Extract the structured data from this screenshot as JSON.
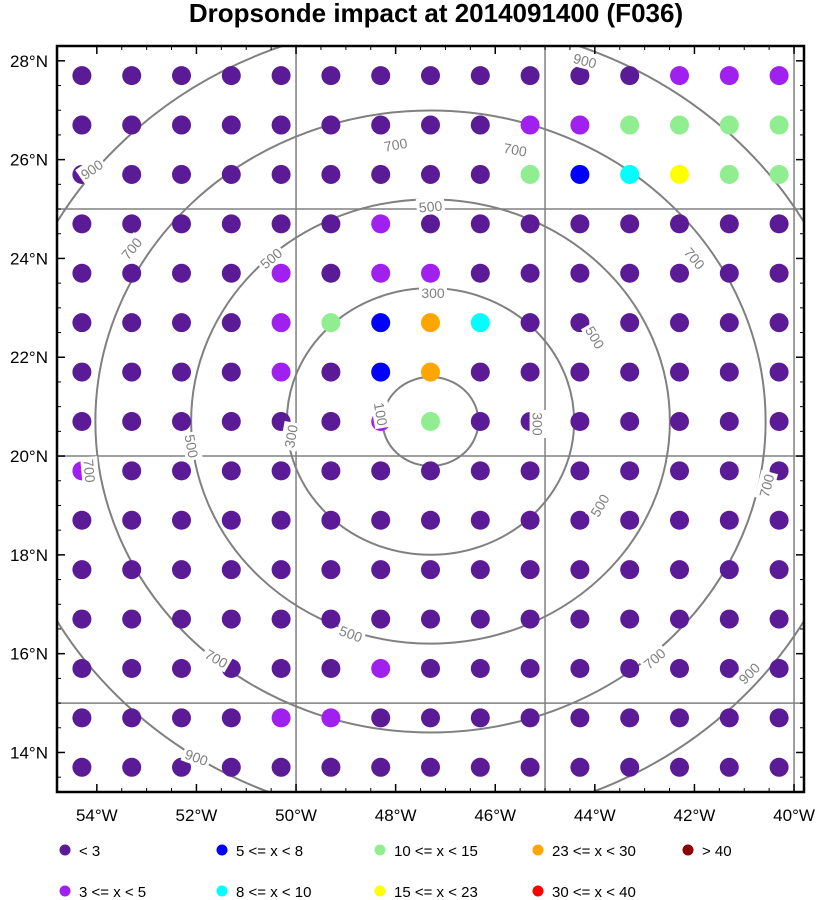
{
  "chart_data": {
    "type": "scatter",
    "title": "Dropsonde impact at 2014091400 (F036)",
    "x_ticks": [
      "54°W",
      "52°W",
      "50°W",
      "48°W",
      "46°W",
      "44°W",
      "42°W",
      "40°W"
    ],
    "y_ticks": [
      "14°N",
      "16°N",
      "18°N",
      "20°N",
      "22°N",
      "24°N",
      "26°N",
      "28°N"
    ],
    "xlim_deg_east": [
      -54.8,
      -39.8
    ],
    "ylim_deg_north": [
      13.2,
      28.3
    ],
    "grid_lines": {
      "lon_deg_east": [
        -50,
        -45,
        -40
      ],
      "lat_deg_north": [
        15,
        20,
        25
      ]
    },
    "grid_lon_deg_east": [
      -54.3,
      -53.3,
      -52.3,
      -51.3,
      -50.3,
      -49.3,
      -48.3,
      -47.3,
      -46.3,
      -45.3,
      -44.3,
      -43.3,
      -42.3,
      -41.3,
      -40.3
    ],
    "grid_lat_deg_north": [
      27.7,
      26.7,
      25.7,
      24.7,
      23.7,
      22.7,
      21.7,
      20.7,
      19.7,
      18.7,
      17.7,
      16.7,
      15.7,
      14.7,
      13.7
    ],
    "impact_class_grid": [
      "000000000000111",
      "000000000114444",
      "000000000423544",
      "000000100000000",
      "000010110000000",
      "000014263000000",
      "000010260000000",
      "000000140000000",
      "100000000000000",
      "000000000000000",
      "000000000000000",
      "000000000000000",
      "000000100000000",
      "000011000000000",
      "000000000000000"
    ],
    "range_rings": {
      "center_lon_deg_east": -47.3,
      "center_lat_deg_north": 20.7,
      "labels": [
        "100",
        "300",
        "500",
        "700",
        "900"
      ]
    },
    "contour_labels": [
      {
        "text": "100",
        "lon": -48.3,
        "lat": 20.85,
        "rot": 80
      },
      {
        "text": "300",
        "lon": -47.25,
        "lat": 23.3,
        "rot": 0
      },
      {
        "text": "300",
        "lon": -45.15,
        "lat": 20.65,
        "rot": 90
      },
      {
        "text": "300",
        "lon": -50.1,
        "lat": 20.4,
        "rot": -80
      },
      {
        "text": "500",
        "lon": -47.3,
        "lat": 25.05,
        "rot": -5
      },
      {
        "text": "500",
        "lon": -50.5,
        "lat": 24.0,
        "rot": -40
      },
      {
        "text": "500",
        "lon": -44.0,
        "lat": 22.4,
        "rot": 60
      },
      {
        "text": "500",
        "lon": -52.1,
        "lat": 20.2,
        "rot": 80
      },
      {
        "text": "500",
        "lon": -43.9,
        "lat": 19.0,
        "rot": -60
      },
      {
        "text": "500",
        "lon": -48.9,
        "lat": 16.4,
        "rot": 20
      },
      {
        "text": "700",
        "lon": -48.0,
        "lat": 26.3,
        "rot": -10
      },
      {
        "text": "700",
        "lon": -45.6,
        "lat": 26.2,
        "rot": 10
      },
      {
        "text": "700",
        "lon": -53.3,
        "lat": 24.2,
        "rot": -50
      },
      {
        "text": "700",
        "lon": -42.0,
        "lat": 24.0,
        "rot": 50
      },
      {
        "text": "700",
        "lon": -54.15,
        "lat": 19.7,
        "rot": 85
      },
      {
        "text": "700",
        "lon": -40.55,
        "lat": 19.4,
        "rot": -75
      },
      {
        "text": "700",
        "lon": -51.6,
        "lat": 15.9,
        "rot": 30
      },
      {
        "text": "700",
        "lon": -42.8,
        "lat": 15.9,
        "rot": -40
      },
      {
        "text": "900",
        "lon": -44.2,
        "lat": 28.0,
        "rot": 15
      },
      {
        "text": "900",
        "lon": -54.1,
        "lat": 25.8,
        "rot": -35
      },
      {
        "text": "900",
        "lon": -40.9,
        "lat": 15.6,
        "rot": -45
      },
      {
        "text": "900",
        "lon": -52.0,
        "lat": 13.9,
        "rot": 20
      }
    ],
    "legend": {
      "placement": "bottom",
      "entries": [
        {
          "label": "<  3",
          "color": "#5b1a96"
        },
        {
          "label": "3 <= x <  5",
          "color": "#a020f0"
        },
        {
          "label": "5 <= x <  8",
          "color": "#0000ff"
        },
        {
          "label": "8 <= x < 10",
          "color": "#00ffff"
        },
        {
          "label": "10 <= x < 15",
          "color": "#90ee90"
        },
        {
          "label": "15 <= x < 23",
          "color": "#ffff00"
        },
        {
          "label": "23 <= x < 30",
          "color": "#ffa500"
        },
        {
          "label": "30 <= x < 40",
          "color": "#ff0000"
        },
        {
          "label": "> 40",
          "color": "#8b0000"
        }
      ]
    },
    "grid": true
  }
}
